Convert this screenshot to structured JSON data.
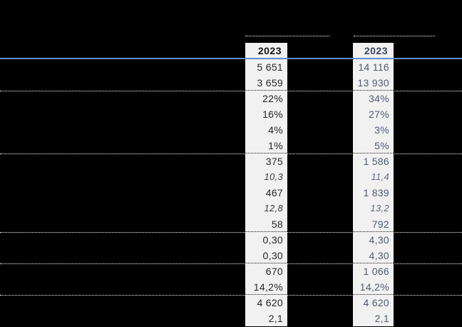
{
  "colors": {
    "background": "#000000",
    "strip_background": "#f1f1f1",
    "header_underline_blue": "#6090c8",
    "column1_header_text": "#141414",
    "column1_value_text": "#262626",
    "column1_italic_text": "#3c3c3c",
    "column2_header_text": "#39465e",
    "column2_value_text": "#4e5b74",
    "column2_italic_text": "#5f6d87",
    "separator_dot_on_dark": "#ffffff",
    "separator_dot_on_light": "#1a1a1a"
  },
  "table": {
    "columns": [
      {
        "header": "2023",
        "values": [
          "5 651",
          "3 659",
          "22%",
          "16%",
          "4%",
          "1%",
          "375",
          "10,3",
          "467",
          "12,8",
          "58",
          "0,30",
          "0,30",
          "670",
          "14,2%",
          "4 620",
          "2,1"
        ]
      },
      {
        "header": "2023",
        "values": [
          "14 116",
          "13 930",
          "34%",
          "27%",
          "3%",
          "5%",
          "1 586",
          "11,4",
          "1 839",
          "13,2",
          "792",
          "4,30",
          "4,30",
          "1 066",
          "14,2%",
          "4 620",
          "2,1"
        ]
      }
    ],
    "italic_row_indices": [
      7,
      9
    ],
    "separator_after_row_indices": [
      1,
      5,
      10,
      12,
      14
    ]
  },
  "chart_data": {
    "type": "table",
    "columns": [
      "2023",
      "2023"
    ],
    "rows": [
      [
        "5 651",
        "14 116"
      ],
      [
        "3 659",
        "13 930"
      ],
      [
        "22%",
        "34%"
      ],
      [
        "16%",
        "27%"
      ],
      [
        "4%",
        "3%"
      ],
      [
        "1%",
        "5%"
      ],
      [
        "375",
        "1 586"
      ],
      [
        "10,3",
        "11,4"
      ],
      [
        "467",
        "1 839"
      ],
      [
        "12,8",
        "13,2"
      ],
      [
        "58",
        "792"
      ],
      [
        "0,30",
        "4,30"
      ],
      [
        "0,30",
        "4,30"
      ],
      [
        "670",
        "1 066"
      ],
      [
        "14,2%",
        "14,2%"
      ],
      [
        "4 620",
        "4 620"
      ],
      [
        "2,1",
        "2,1"
      ]
    ]
  }
}
